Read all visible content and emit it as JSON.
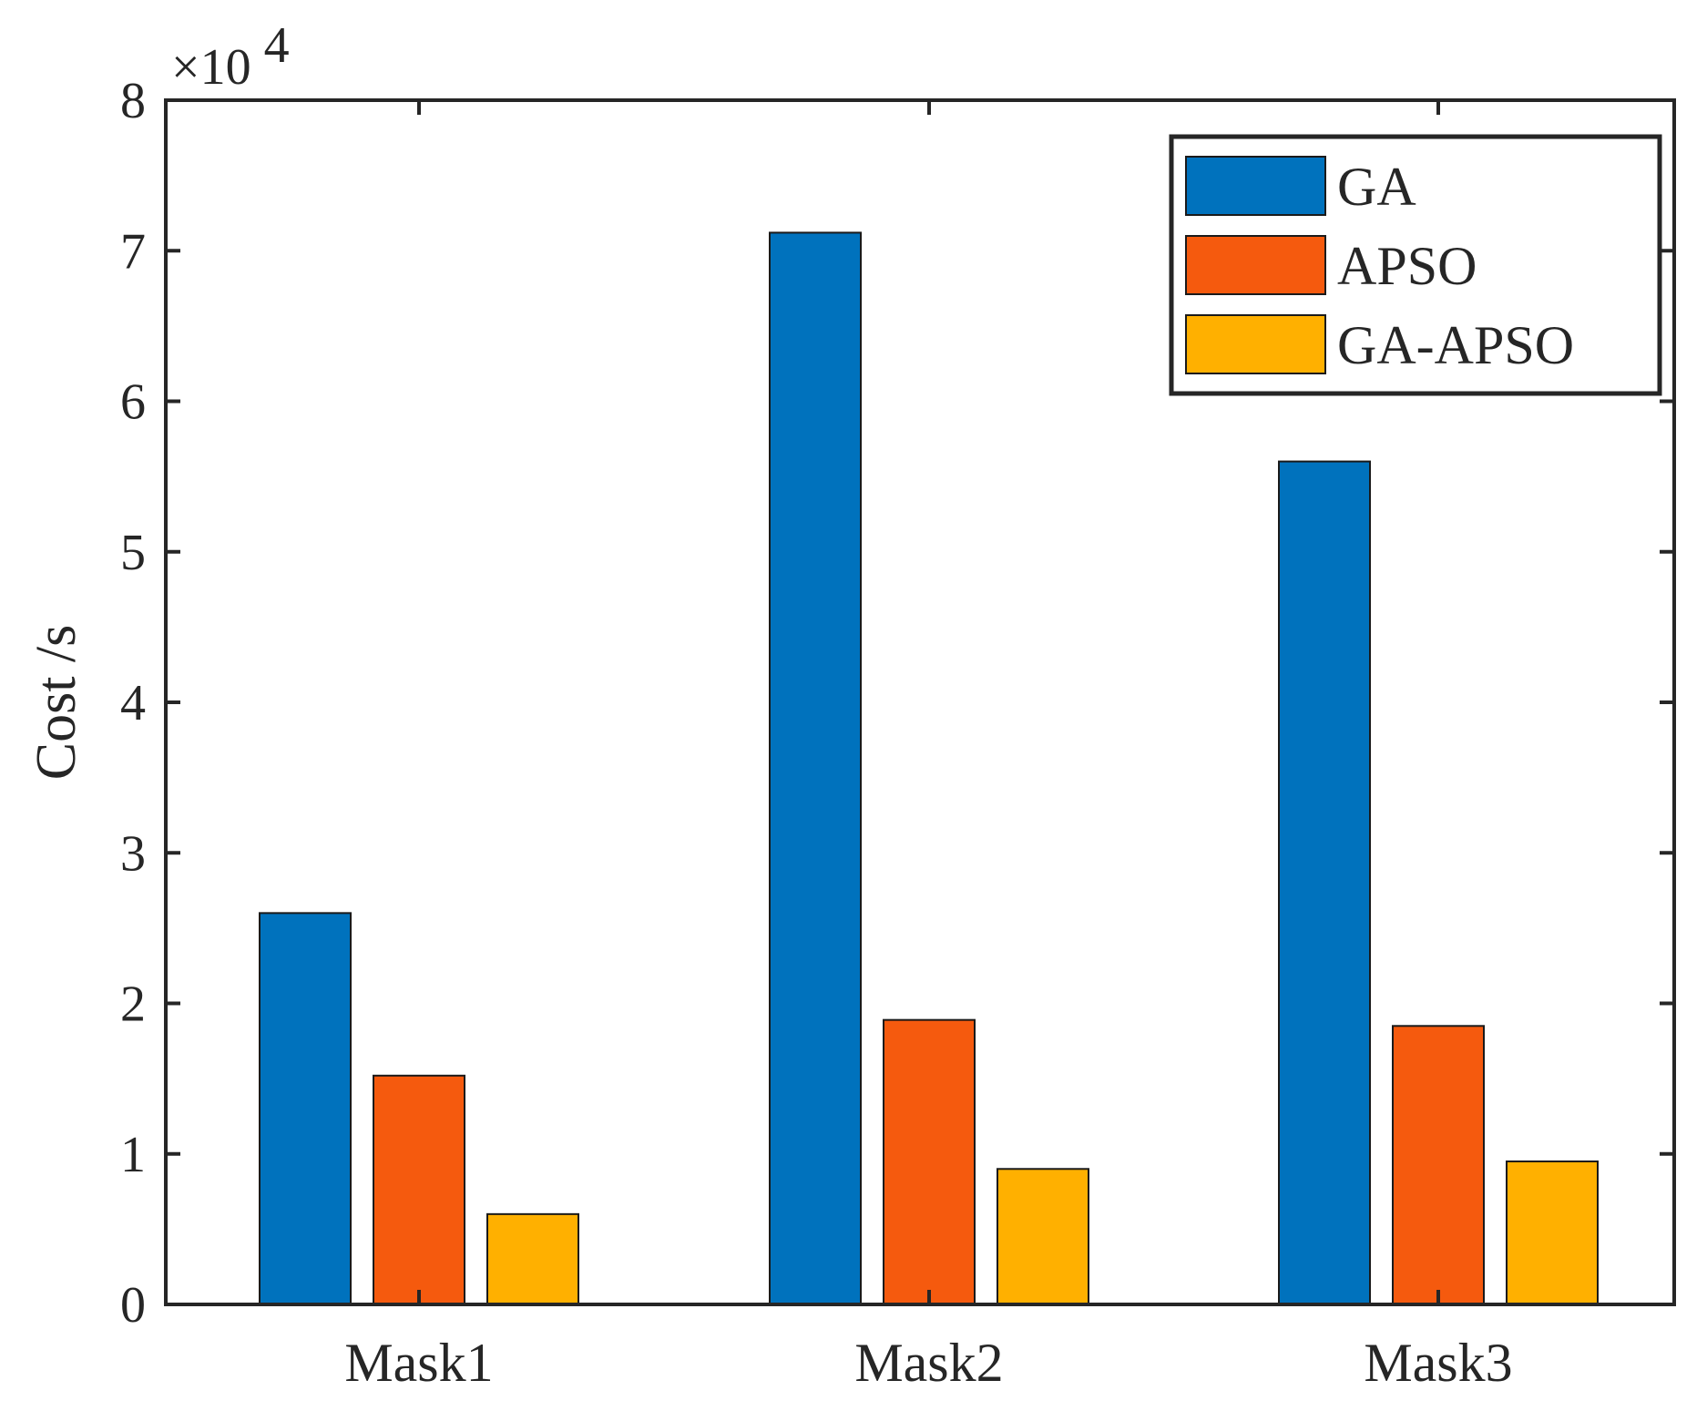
{
  "chart_data": {
    "type": "bar",
    "title": "",
    "xlabel": "",
    "ylabel": "Cost /s",
    "y_multiplier": {
      "base": "×10",
      "exponent": "4"
    },
    "ylim": [
      0,
      8
    ],
    "yticks": [
      "0",
      "1",
      "2",
      "3",
      "4",
      "5",
      "6",
      "7",
      "8"
    ],
    "categories": [
      "Mask1",
      "Mask2",
      "Mask3"
    ],
    "series": [
      {
        "name": "GA",
        "color": "#0072BD",
        "values": [
          2.6,
          7.12,
          5.6
        ]
      },
      {
        "name": "APSO",
        "color": "#F55A0E",
        "values": [
          1.52,
          1.89,
          1.85
        ]
      },
      {
        "name": "GA-APSO",
        "color": "#FFB000",
        "values": [
          0.6,
          0.9,
          0.95
        ]
      }
    ],
    "legend": {
      "position": "top-right"
    },
    "grid": false
  }
}
